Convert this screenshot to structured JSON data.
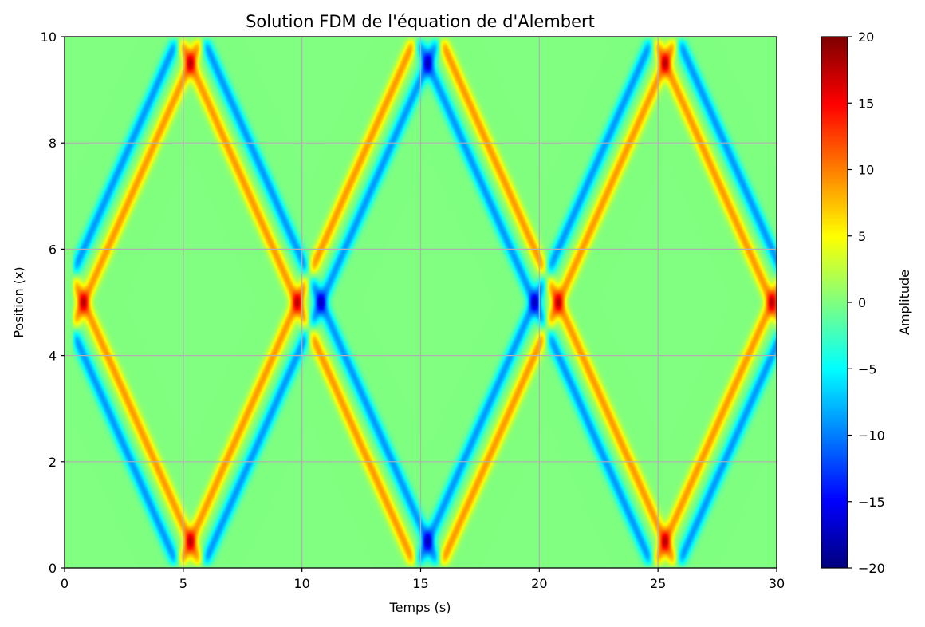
{
  "chart_data": {
    "type": "heatmap",
    "title": "Solution FDM de l'équation de d'Alembert",
    "xlabel": "Temps (s)",
    "ylabel": "Position (x)",
    "xlim": [
      0,
      30
    ],
    "ylim": [
      0,
      10
    ],
    "x_ticks": [
      0,
      5,
      10,
      15,
      20,
      25,
      30
    ],
    "y_ticks": [
      0,
      2,
      4,
      6,
      8,
      10
    ],
    "grid": true,
    "colormap": "jet",
    "colorbar": {
      "label": "Amplitude",
      "range": [
        -20,
        20
      ],
      "ticks": [
        "20",
        "15",
        "10",
        "5",
        "0",
        "−5",
        "−10",
        "−15",
        "−20"
      ],
      "tick_values": [
        20,
        15,
        10,
        5,
        0,
        -5,
        -10,
        -15,
        -20
      ]
    },
    "pattern": {
      "description": "two counter-propagating wavelets reflecting at x=0 and x=10",
      "source_position": 5,
      "source_time": 0.3,
      "wave_speed": 1,
      "pulse_peak": 9,
      "pulse_trough": -9,
      "collision_peak": 20,
      "collision_trough": -20,
      "collision_times": [
        5.5,
        10.5,
        15.5,
        20.5,
        25.5
      ],
      "collision_positions": [
        0,
        5,
        10
      ]
    }
  }
}
